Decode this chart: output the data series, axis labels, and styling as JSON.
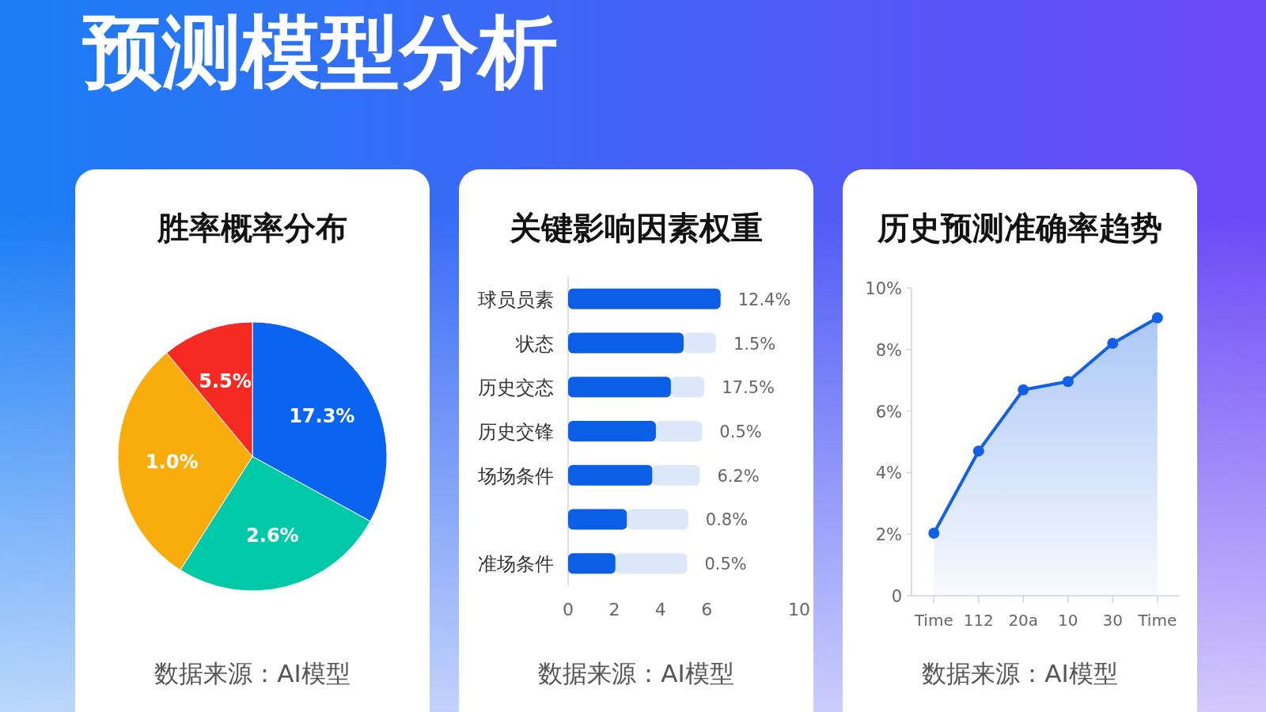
{
  "chart_data": [
    {
      "type": "other",
      "title": "预测模型分析"
    },
    {
      "type": "pie",
      "title": "胜率概率分布",
      "categories": [
        null,
        null,
        null,
        null
      ],
      "values": [
        33,
        26,
        30,
        11
      ],
      "colors": [
        "#0a64f0",
        "#00c9a7",
        "#f9ad0c",
        "#f52a22"
      ],
      "annotations": [
        "17.3%",
        "2.6%",
        "1.0%",
        "5.5%",
        "数据来源：AI模型"
      ]
    },
    {
      "type": "bar",
      "title": "关键影响因素权重",
      "orientation": "horizontal",
      "stacked": true,
      "categories": [
        "球员员素",
        "状态",
        "历史交态",
        "历史交锋",
        "场场条件",
        null,
        "准场条件"
      ],
      "series": [
        {
          "color": "#0b5fe6",
          "values": [
            6.6,
            5.0,
            4.45,
            3.8,
            3.65,
            2.55,
            2.05
          ]
        },
        {
          "color": "#dce8fa",
          "values": [
            0,
            1.4,
            1.45,
            2.0,
            2.05,
            2.65,
            3.1
          ]
        }
      ],
      "xlim": [
        0,
        10
      ],
      "xticks": [
        0,
        2,
        4,
        6,
        10
      ],
      "annotations": [
        {
          "text": "12.4%",
          "x": 6.6,
          "y": "球员员素"
        },
        {
          "text": "1.5%",
          "x": 6.4,
          "y": "状态"
        },
        {
          "text": "17.5%",
          "x": 5.9,
          "y": "历史交态"
        },
        {
          "text": "0.5%",
          "x": 5.8,
          "y": "历史交锋"
        },
        {
          "text": "6.2%",
          "x": 5.7,
          "y": "场场条件"
        },
        {
          "text": "0.8%",
          "x": 5.2
        },
        {
          "text": "0.5%",
          "x": 5.15,
          "y": "准场条件"
        },
        "数据来源：AI模型"
      ]
    },
    {
      "type": "area",
      "title": "历史预测准确率趋势",
      "categories": [
        "Time",
        "112",
        "20a",
        "10",
        "30",
        "Time"
      ],
      "series": [
        {
          "color": "#1160e6",
          "values": [
            2.03,
            4.7,
            6.69,
            6.96,
            8.2,
            9.03
          ]
        }
      ],
      "marker": "circle",
      "ylim": [
        0,
        10
      ],
      "yticks": [
        0,
        {
          "value": 2,
          "label": "2%"
        },
        {
          "value": 4,
          "label": "4%"
        },
        {
          "value": 6,
          "label": "6%"
        },
        {
          "value": 8,
          "label": "8%"
        },
        {
          "value": 10,
          "label": "10%"
        }
      ],
      "annotations": [
        "数据来源：AI模型"
      ]
    }
  ]
}
